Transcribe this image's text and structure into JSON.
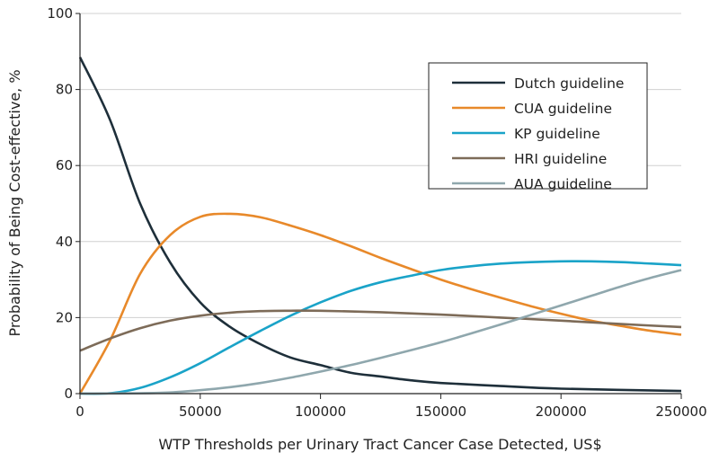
{
  "chart_data": {
    "type": "line",
    "title": "",
    "xlabel": "WTP Thresholds per Urinary Tract Cancer Case Detected, US$",
    "ylabel": "Probability of Being Cost-effective, %",
    "xlim": [
      0,
      250000
    ],
    "ylim": [
      0,
      100
    ],
    "xticks": [
      0,
      50000,
      100000,
      150000,
      200000,
      250000
    ],
    "xtick_labels": [
      "0",
      "50000",
      "100000",
      "150000",
      "200000",
      "250000"
    ],
    "yticks": [
      0,
      20,
      40,
      60,
      80,
      100
    ],
    "ytick_labels": [
      "0",
      "20",
      "40",
      "60",
      "80",
      "100"
    ],
    "grid": "horizontal",
    "legend_position": "top-right",
    "series": [
      {
        "name": "Dutch guideline",
        "color": "#1e2f3a",
        "x": [
          0,
          12500,
          25000,
          37500,
          50000,
          62500,
          75000,
          87500,
          100000,
          112500,
          125000,
          137500,
          150000,
          175000,
          200000,
          250000
        ],
        "y": [
          88.5,
          72,
          50,
          34.5,
          24,
          17.5,
          13,
          9.5,
          7.5,
          5.5,
          4.5,
          3.5,
          2.8,
          2,
          1.3,
          0.7
        ]
      },
      {
        "name": "CUA guideline",
        "color": "#e8892a",
        "x": [
          0,
          12500,
          25000,
          37500,
          50000,
          62500,
          75000,
          87500,
          100000,
          112500,
          125000,
          137500,
          150000,
          162500,
          175000,
          187500,
          200000,
          212500,
          225000,
          237500,
          250000
        ],
        "y": [
          0,
          14,
          31.5,
          41.7,
          46.5,
          47.3,
          46.4,
          44.2,
          41.7,
          38.8,
          35.7,
          32.8,
          30,
          27.5,
          25.2,
          23,
          21,
          19.2,
          17.8,
          16.5,
          15.5
        ]
      },
      {
        "name": "KP guideline",
        "color": "#1aa3c8",
        "x": [
          0,
          12500,
          25000,
          37500,
          50000,
          62500,
          75000,
          87500,
          100000,
          112500,
          125000,
          137500,
          150000,
          162500,
          175000,
          187500,
          200000,
          212500,
          225000,
          237500,
          250000
        ],
        "y": [
          0,
          0.1,
          1.5,
          4.3,
          8,
          12.3,
          16.5,
          20.5,
          24,
          27,
          29.3,
          31,
          32.5,
          33.5,
          34.2,
          34.6,
          34.8,
          34.8,
          34.6,
          34.2,
          33.8
        ]
      },
      {
        "name": "HRI guideline",
        "color": "#7d6b58",
        "x": [
          0,
          12500,
          25000,
          37500,
          50000,
          62500,
          75000,
          87500,
          100000,
          125000,
          150000,
          175000,
          200000,
          225000,
          250000
        ],
        "y": [
          11.3,
          14.5,
          17.2,
          19.2,
          20.5,
          21.3,
          21.7,
          21.8,
          21.8,
          21.4,
          20.8,
          20,
          19.2,
          18.3,
          17.5
        ]
      },
      {
        "name": "AUA guideline",
        "color": "#8fa7ad",
        "x": [
          0,
          25000,
          37500,
          50000,
          62500,
          75000,
          87500,
          100000,
          112500,
          125000,
          137500,
          150000,
          162500,
          175000,
          187500,
          200000,
          212500,
          225000,
          237500,
          250000
        ],
        "y": [
          0,
          0.1,
          0.3,
          0.9,
          1.7,
          2.8,
          4.2,
          5.8,
          7.5,
          9.4,
          11.4,
          13.5,
          15.8,
          18.2,
          20.7,
          23.2,
          25.7,
          28.2,
          30.5,
          32.5
        ]
      }
    ]
  }
}
